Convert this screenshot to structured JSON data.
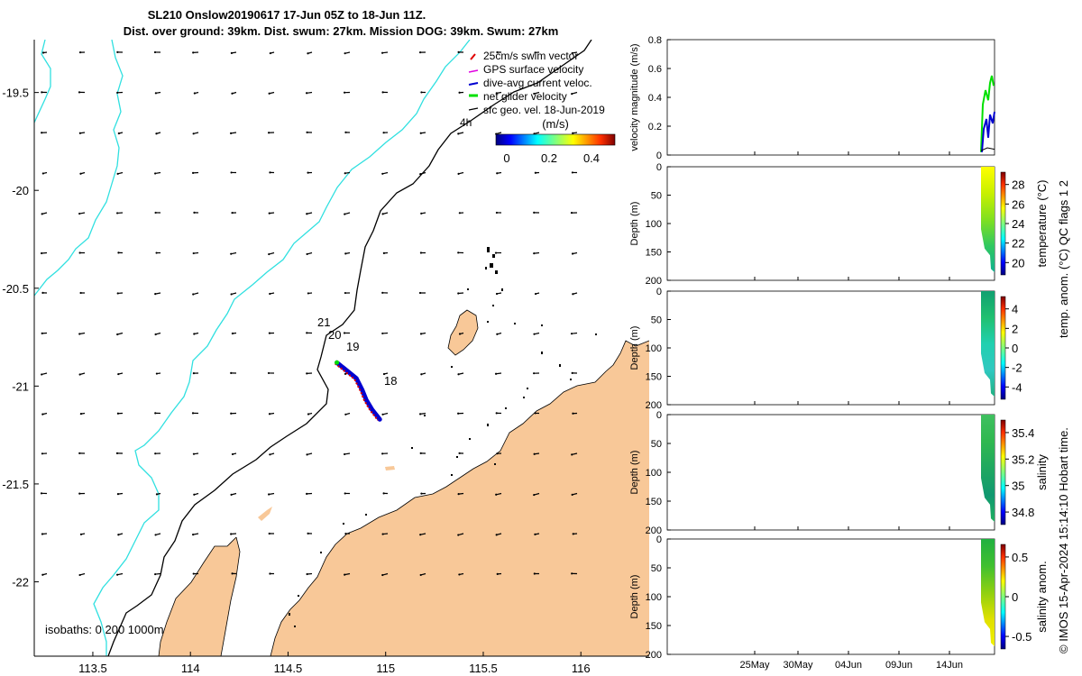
{
  "colors": {
    "land": "#f8c898",
    "isobath_shallow": "#000000",
    "isobath_deep": "#30e0e0",
    "swim": "#e00000",
    "gps": "#e000e0",
    "dive_current": "#0000d0",
    "net_glider": "#00e000",
    "sfc_geo": "#000000"
  },
  "title": {
    "line1": "SL210 Onslow20190617 17-Jun 05Z to 18-Jun 11Z.",
    "line2": "Dist. over ground: 39km. Dist. swum: 27km. Mission DOG: 39km. Swum: 27km"
  },
  "legend": {
    "items": [
      "25cm/s swim vector",
      "GPS surface velocity",
      "dive-avg current veloc.",
      "net glider velocity",
      "sfc geo. vel. 18-Jun-2019"
    ],
    "note": "4h",
    "colorbar_title": "(m/s)",
    "colorbar_ticks": [
      "0",
      "0.2",
      "0.4"
    ]
  },
  "isobath_label": "isobaths: 0   200  1000m",
  "day_labels": [
    "21",
    "20",
    "19",
    "18"
  ],
  "right_labels": {
    "side1": "temp. anom. (°C)   QC flags 1  2",
    "side2": "© IMOS 15-Apr-2024 15:14:10 Hobart time."
  },
  "chart_data": [
    {
      "type": "scatter",
      "name": "map",
      "xlabel": "",
      "ylabel": "",
      "xlim": [
        113.2,
        116.35
      ],
      "ylim": [
        -22.38,
        -19.23
      ],
      "xticks": [
        "113.5",
        "114",
        "114.5",
        "115",
        "115.5",
        "116"
      ],
      "yticks": [
        "-19.5",
        "-20",
        "-20.5",
        "-21",
        "-21.5",
        "-22"
      ],
      "track": [
        [
          114.75,
          -20.88
        ],
        [
          114.8,
          -20.92
        ],
        [
          114.85,
          -20.96
        ],
        [
          114.88,
          -21.02
        ],
        [
          114.9,
          -21.07
        ],
        [
          114.93,
          -21.12
        ],
        [
          114.97,
          -21.17
        ]
      ]
    },
    {
      "type": "line",
      "name": "velocity",
      "ylabel": "velocity magnitude (m/s)",
      "ylim": [
        0,
        0.8
      ],
      "yticks": [
        "0",
        "0.2",
        "0.4",
        "0.6",
        "0.8"
      ],
      "xticks": [
        "25May",
        "30May",
        "04Jun",
        "09Jun",
        "14Jun"
      ]
    },
    {
      "type": "heatmap",
      "name": "temperature",
      "ylabel": "Depth (m)",
      "yticks": [
        "0",
        "50",
        "100",
        "150",
        "200"
      ],
      "colorbar_label": "temperature (°C)",
      "colorbar_ticks": [
        "28",
        "26",
        "24",
        "22",
        "20"
      ],
      "clim": [
        19,
        29.5
      ]
    },
    {
      "type": "heatmap",
      "name": "temp_anom",
      "ylabel": "Depth (m)",
      "yticks": [
        "0",
        "50",
        "100",
        "150",
        "200"
      ],
      "colorbar_ticks": [
        "4",
        "2",
        "0",
        "-2",
        "-4"
      ],
      "clim": [
        -4,
        4
      ]
    },
    {
      "type": "heatmap",
      "name": "salinity",
      "ylabel": "Depth (m)",
      "yticks": [
        "0",
        "50",
        "100",
        "150",
        "200"
      ],
      "colorbar_label": "salinity",
      "colorbar_ticks": [
        "35.4",
        "35.2",
        "35",
        "34.8"
      ],
      "clim": [
        34.7,
        35.55
      ]
    },
    {
      "type": "heatmap",
      "name": "salinity_anom",
      "ylabel": "Depth (m)",
      "yticks": [
        "0",
        "50",
        "100",
        "150",
        "200"
      ],
      "colorbar_label": "salinity anom.",
      "colorbar_ticks": [
        "0.5",
        "0",
        "-0.5"
      ],
      "xticks": [
        "25May",
        "30May",
        "04Jun",
        "09Jun",
        "14Jun"
      ],
      "clim": [
        -0.5,
        0.5
      ]
    }
  ]
}
